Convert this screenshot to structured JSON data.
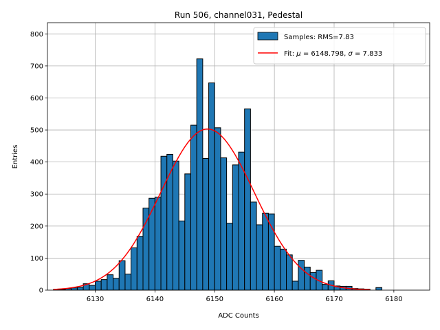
{
  "chart_data": {
    "type": "bar",
    "title": "Run 506, channel031, Pedestal",
    "xlabel": "ADC Counts",
    "ylabel": "Entries",
    "xlim": [
      6122,
      6186
    ],
    "ylim": [
      0,
      835
    ],
    "xticks": [
      6130,
      6140,
      6150,
      6160,
      6170,
      6180
    ],
    "yticks": [
      0,
      100,
      200,
      300,
      400,
      500,
      600,
      700,
      800
    ],
    "grid": true,
    "legend_position": "top-right",
    "bar_color": "#1f77b4",
    "fit_color": "#ff0000",
    "histogram": {
      "name": "Samples: RMS=7.83",
      "bin_starts": [
        6123,
        6124,
        6125,
        6126,
        6127,
        6128,
        6129,
        6130,
        6131,
        6132,
        6133,
        6134,
        6135,
        6136,
        6137,
        6138,
        6139,
        6140,
        6141,
        6142,
        6143,
        6144,
        6145,
        6146,
        6147,
        6148,
        6149,
        6150,
        6151,
        6152,
        6153,
        6154,
        6155,
        6156,
        6157,
        6158,
        6159,
        6160,
        6161,
        6162,
        6163,
        6164,
        6165,
        6166,
        6167,
        6168,
        6169,
        6170,
        6171,
        6172,
        6173,
        6174,
        6175,
        6176,
        6177
      ],
      "bin_width": 1,
      "values": [
        2,
        2,
        5,
        7,
        9,
        20,
        15,
        28,
        33,
        48,
        37,
        92,
        50,
        132,
        168,
        256,
        287,
        290,
        418,
        424,
        403,
        216,
        363,
        515,
        722,
        411,
        647,
        507,
        413,
        209,
        391,
        431,
        566,
        275,
        204,
        240,
        238,
        137,
        128,
        110,
        28,
        93,
        72,
        55,
        62,
        18,
        29,
        13,
        12,
        12,
        5,
        4,
        3,
        0,
        8
      ]
    },
    "fit": {
      "name_prefix": "Fit: ",
      "mu_symbol": "μ",
      "sigma_symbol": "σ",
      "mu": 6148.798,
      "sigma": 7.833,
      "amplitude": 503,
      "x_range": [
        6123,
        6176
      ]
    },
    "legend": {
      "hist_label": "Samples: RMS=7.83",
      "fit_label_a": "Fit: ",
      "fit_mu": "μ",
      "fit_label_b": " = 6148.798, ",
      "fit_sigma": "σ",
      "fit_label_c": " = 7.833"
    }
  }
}
